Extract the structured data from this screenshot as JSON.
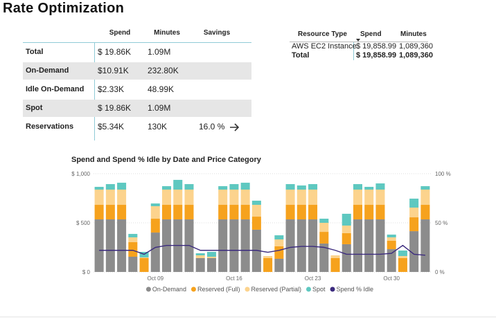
{
  "header": {
    "title": "Rate Optimization"
  },
  "summary": {
    "columns": [
      "Spend",
      "Minutes",
      "Savings"
    ],
    "rows": [
      [
        "Total",
        "$ 19.86K",
        "1.09M"
      ],
      [
        "On-Demand",
        "$10.91K",
        "232.80K"
      ],
      [
        "Idle On-Demand",
        "$2.33K",
        "48.99K"
      ],
      [
        "Spot",
        "$ 19.86K",
        "1.09M"
      ],
      [
        "Reservations",
        "$5.34K",
        "130K",
        "16.0 %"
      ]
    ]
  },
  "resources": {
    "columns": [
      "Resource Type",
      "Spend",
      "Minutes"
    ],
    "rows": [
      [
        "AWS EC2 Instance",
        "$ 19,858.99",
        "1,089,360"
      ],
      [
        "Total",
        "$ 19,858.99",
        "1,089,360"
      ]
    ]
  },
  "chart_data": {
    "type": "bar",
    "stacked": true,
    "title": "Spend and Spend % Idle by Date and Price Category",
    "categories": [
      null,
      null,
      null,
      null,
      null,
      "Oct 09",
      null,
      null,
      null,
      null,
      null,
      null,
      "Oct 16",
      null,
      null,
      null,
      null,
      null,
      null,
      "Oct 23",
      null,
      null,
      null,
      null,
      null,
      null,
      "Oct 30",
      null,
      null,
      null
    ],
    "series": [
      {
        "name": "On-Demand",
        "color": "#8c8c8c",
        "values": [
          535,
          535,
          535,
          155,
          0,
          401,
          535,
          535,
          535,
          141,
          141,
          535,
          535,
          535,
          430,
          0,
          134,
          535,
          535,
          535,
          289,
          0,
          282,
          535,
          535,
          535,
          232,
          0,
          415,
          535
        ]
      },
      {
        "name": "Reserved (Full)",
        "color": "#f6a21d",
        "values": [
          148,
          148,
          148,
          148,
          141,
          141,
          148,
          148,
          148,
          0,
          0,
          148,
          148,
          148,
          133,
          141,
          127,
          148,
          148,
          148,
          119,
          141,
          113,
          148,
          148,
          148,
          85,
          141,
          141,
          148
        ]
      },
      {
        "name": "Reserved (Partial)",
        "color": "#fcd38d",
        "values": [
          155,
          155,
          155,
          49,
          7,
          127,
          155,
          155,
          155,
          28,
          14,
          155,
          155,
          155,
          120,
          21,
          70,
          155,
          155,
          155,
          92,
          28,
          77,
          155,
          155,
          155,
          35,
          21,
          99,
          155
        ]
      },
      {
        "name": "Spot",
        "color": "#5ec8c0",
        "values": [
          28,
          56,
          70,
          35,
          56,
          28,
          35,
          99,
          56,
          21,
          49,
          35,
          56,
          70,
          42,
          0,
          42,
          56,
          42,
          56,
          42,
          0,
          120,
          56,
          28,
          63,
          28,
          56,
          91,
          35
        ]
      },
      {
        "name": "Spend % Idle",
        "color": "#3b2a7e",
        "type": "line",
        "axis": "y2",
        "values": [
          22,
          22,
          22,
          22,
          18,
          25,
          27,
          27,
          27,
          22,
          22,
          22,
          22,
          22,
          22,
          20,
          22,
          25,
          26,
          26,
          25,
          22,
          18,
          18,
          18,
          18,
          19,
          27,
          18,
          17
        ]
      }
    ],
    "ylim": [
      0,
      1000
    ],
    "yticks": [
      {
        "value": 0,
        "label": "$ 0"
      },
      {
        "value": 500,
        "label": "$ 500"
      },
      {
        "value": 1000,
        "label": "$ 1,000"
      }
    ],
    "y2lim": [
      0,
      100
    ],
    "y2ticks": [
      {
        "value": 0,
        "label": "0 %"
      },
      {
        "value": 50,
        "label": "50 %"
      },
      {
        "value": 100,
        "label": "100 %"
      }
    ],
    "grid": true,
    "legend": "bottom"
  }
}
